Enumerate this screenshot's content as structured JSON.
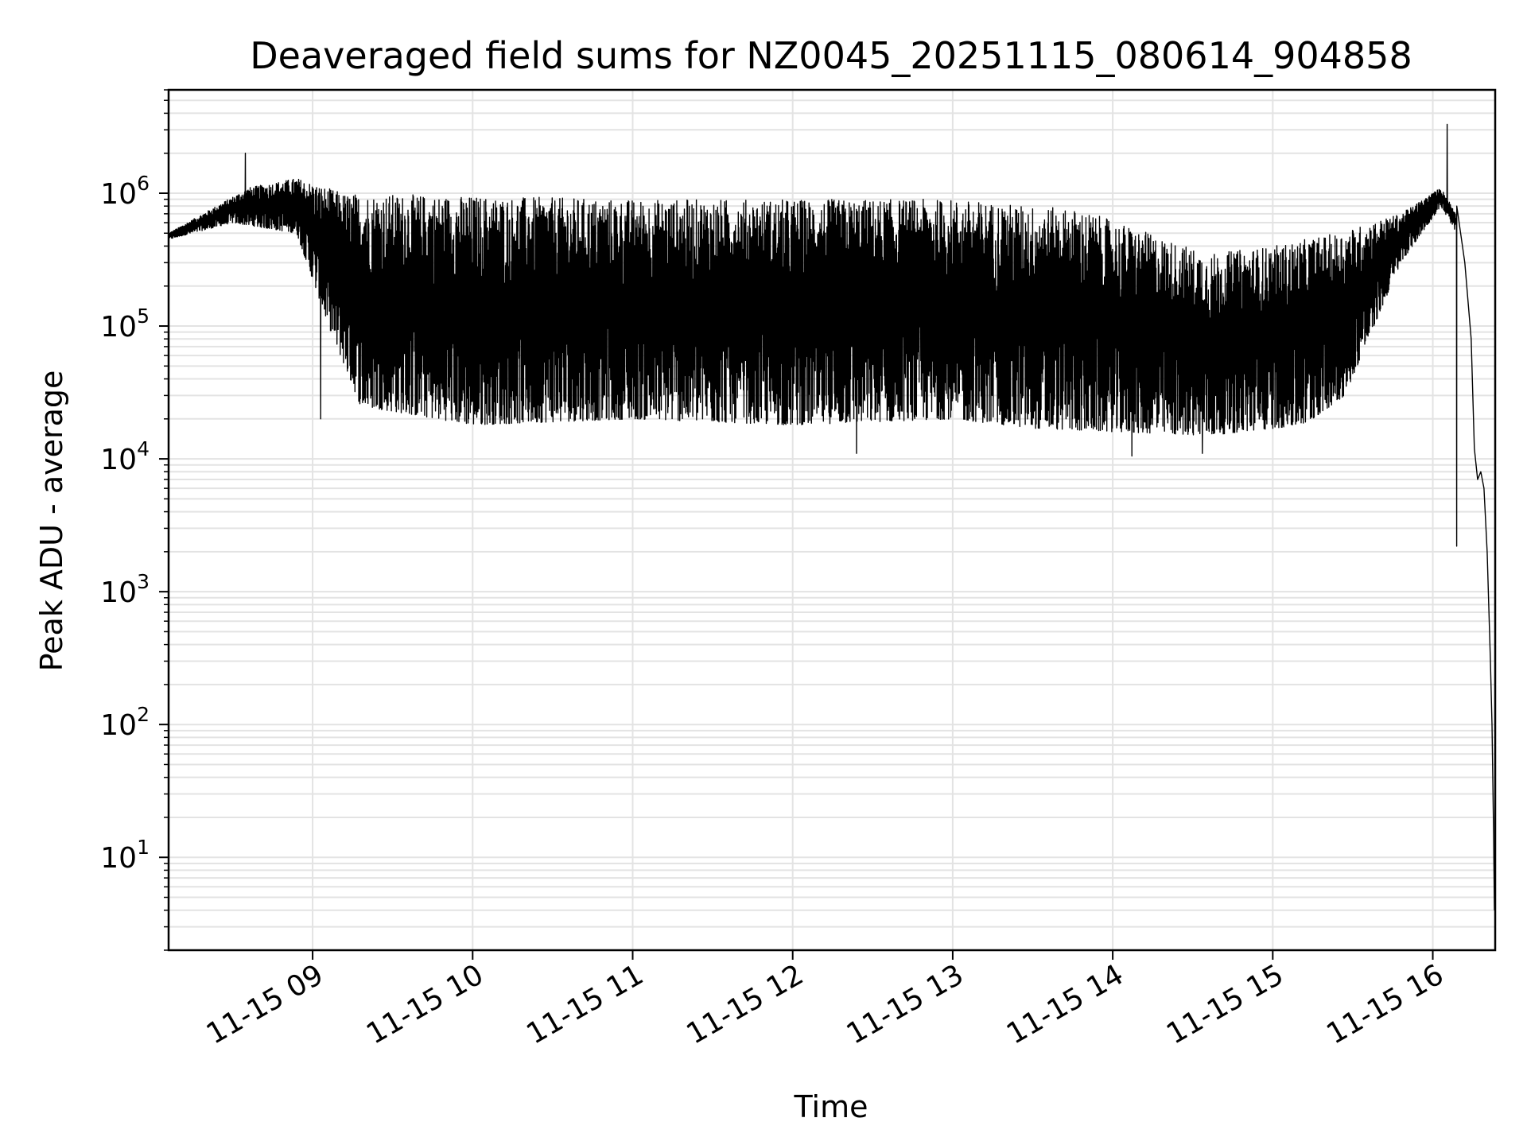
{
  "chart_data": {
    "type": "line",
    "title": "Deaveraged field sums for NZ0045_20251115_080614_904858",
    "xlabel": "Time",
    "ylabel": "Peak ADU - average",
    "yscale": "log",
    "ylim": [
      2,
      6000000
    ],
    "xlim_hours": [
      8.1,
      16.39
    ],
    "grid": true,
    "line_color": "#000000",
    "x_ticks": [
      {
        "hour": 9,
        "label": "11-15 09"
      },
      {
        "hour": 10,
        "label": "11-15 10"
      },
      {
        "hour": 11,
        "label": "11-15 11"
      },
      {
        "hour": 12,
        "label": "11-15 12"
      },
      {
        "hour": 13,
        "label": "11-15 13"
      },
      {
        "hour": 14,
        "label": "11-15 14"
      },
      {
        "hour": 15,
        "label": "11-15 15"
      },
      {
        "hour": 16,
        "label": "11-15 16"
      }
    ],
    "y_ticks": [
      {
        "exp": 1,
        "base": "10",
        "sup": "1"
      },
      {
        "exp": 2,
        "base": "10",
        "sup": "2"
      },
      {
        "exp": 3,
        "base": "10",
        "sup": "3"
      },
      {
        "exp": 4,
        "base": "10",
        "sup": "4"
      },
      {
        "exp": 5,
        "base": "10",
        "sup": "5"
      },
      {
        "exp": 6,
        "base": "10",
        "sup": "6"
      }
    ],
    "series": [
      {
        "name": "field sums",
        "envelope_anchors_upper": [
          [
            8.1,
            500000
          ],
          [
            8.6,
            1100000
          ],
          [
            8.9,
            1300000
          ],
          [
            9.2,
            1000000
          ],
          [
            11.0,
            900000
          ],
          [
            12.0,
            900000
          ],
          [
            13.0,
            900000
          ],
          [
            13.8,
            750000
          ],
          [
            14.6,
            350000
          ],
          [
            15.0,
            400000
          ],
          [
            15.4,
            500000
          ],
          [
            15.8,
            700000
          ],
          [
            16.05,
            1100000
          ],
          [
            16.15,
            700000
          ]
        ],
        "envelope_anchors_lower": [
          [
            8.1,
            450000
          ],
          [
            8.5,
            600000
          ],
          [
            8.9,
            500000
          ],
          [
            9.1,
            100000
          ],
          [
            9.3,
            25000
          ],
          [
            10.0,
            18000
          ],
          [
            11.0,
            20000
          ],
          [
            12.0,
            18000
          ],
          [
            13.0,
            20000
          ],
          [
            13.5,
            17000
          ],
          [
            14.0,
            16000
          ],
          [
            14.6,
            15000
          ],
          [
            15.2,
            18000
          ],
          [
            15.45,
            30000
          ],
          [
            15.8,
            300000
          ],
          [
            16.05,
            800000
          ],
          [
            16.15,
            500000
          ]
        ],
        "spikes": [
          [
            8.58,
            2000000
          ],
          [
            9.05,
            20000
          ],
          [
            12.4,
            11000
          ],
          [
            14.12,
            10500
          ],
          [
            14.56,
            11000
          ],
          [
            16.09,
            3300000
          ],
          [
            16.26,
            2200
          ]
        ],
        "tail": [
          [
            16.15,
            800000
          ],
          [
            16.2,
            300000
          ],
          [
            16.24,
            80000
          ],
          [
            16.26,
            12000
          ],
          [
            16.28,
            7000
          ],
          [
            16.3,
            8000
          ],
          [
            16.32,
            6000
          ],
          [
            16.34,
            2000
          ],
          [
            16.36,
            300
          ],
          [
            16.37,
            100
          ],
          [
            16.38,
            15
          ],
          [
            16.385,
            4
          ]
        ]
      }
    ]
  }
}
